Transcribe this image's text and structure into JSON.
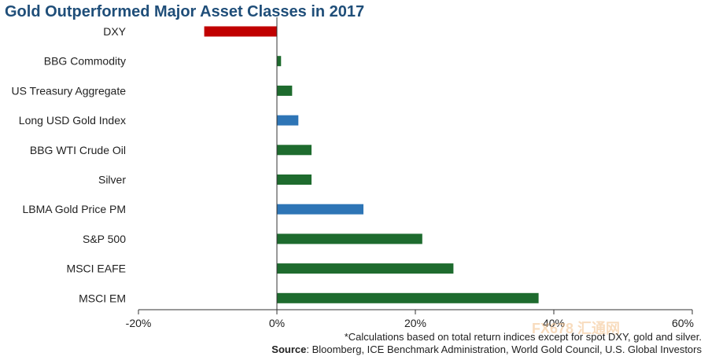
{
  "chart_data": {
    "type": "bar",
    "orientation": "horizontal",
    "title": "Gold Outperformed Major Asset Classes in 2017",
    "categories": [
      "DXY",
      "BBG Commodity",
      "US Treasury Aggregate",
      "Long USD Gold Index",
      "BBG WTI Crude Oil",
      "Silver",
      "LBMA Gold Price PM",
      "S&P 500",
      "MSCI EAFE",
      "MSCI EM"
    ],
    "values": [
      -10.5,
      0.6,
      2.2,
      3.1,
      5.0,
      5.0,
      12.5,
      21.0,
      25.5,
      37.8
    ],
    "bar_colors": [
      "#c00000",
      "#1e6b2e",
      "#1e6b2e",
      "#2e75b6",
      "#1e6b2e",
      "#1e6b2e",
      "#2e75b6",
      "#1e6b2e",
      "#1e6b2e",
      "#1e6b2e"
    ],
    "xlim": [
      -20,
      60
    ],
    "xticks": [
      -20,
      0,
      20,
      40,
      60
    ],
    "xtick_labels": [
      "-20%",
      "0%",
      "20%",
      "40%",
      "60%"
    ],
    "xlabel": "",
    "ylabel": "",
    "grid": false
  },
  "footnote": "*Calculations based on total return indices except for spot DXY, gold and silver.",
  "source": {
    "label": "Source",
    "text": ": Bloomberg, ICE Benchmark Administration, World Gold Council, U.S. Global Investors"
  },
  "watermark": "FX678 汇通网"
}
